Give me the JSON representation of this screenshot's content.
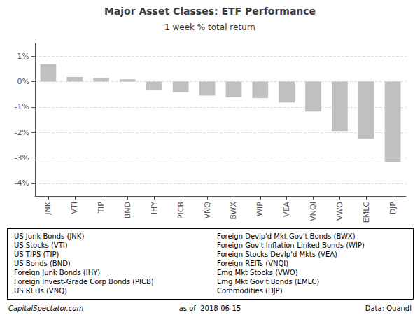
{
  "chart_data": {
    "type": "bar",
    "title": "Major Asset Classes: ETF Performance",
    "subtitle": "1 week % total return",
    "categories": [
      "JNK",
      "VTI",
      "TIP",
      "BND",
      "IHY",
      "PICB",
      "VNQ",
      "BWX",
      "WIP",
      "VEA",
      "VNQI",
      "VWO",
      "EMLC",
      "DJP"
    ],
    "values": [
      0.68,
      0.18,
      0.14,
      0.09,
      -0.32,
      -0.42,
      -0.55,
      -0.62,
      -0.65,
      -0.82,
      -1.18,
      -1.95,
      -2.25,
      -3.15
    ],
    "color": "#c0c0c0",
    "ylim": [
      -4.5,
      1.5
    ],
    "yticks": [
      {
        "value": -4,
        "label": "-4%"
      },
      {
        "value": -3,
        "label": "-3%"
      },
      {
        "value": -2,
        "label": "-2%"
      },
      {
        "value": -1,
        "label": "-1%"
      },
      {
        "value": 0,
        "label": "0%"
      },
      {
        "value": 1,
        "label": "1%"
      }
    ],
    "grid": true,
    "annotations": [
      [
        "US Junk Bonds (JNK)",
        "US Stocks (VTI)",
        "US TIPS (TIP)",
        "US Bonds (BND)",
        "Foreign Junk Bonds (IHY)",
        "Foreign Invest-Grade Corp Bonds (PICB)",
        "US REITs (VNQ)"
      ],
      [
        "Foreign Devlp'd Mkt Gov't Bonds (BWX)",
        "Foreign Gov't Inflation-Linked Bonds (WIP)",
        "Foreign Stocks Devlp'd Mkts (VEA)",
        "Foreign REITs (VNQI)",
        "Emg Mkt Stocks (VWO)",
        "Emg Mkt Gov't Bonds (EMLC)",
        "Commodities (DJP)"
      ],
      [
        "CapitalSpectator.com",
        "as of  2018-06-15",
        "Data: Quandl"
      ]
    ]
  }
}
